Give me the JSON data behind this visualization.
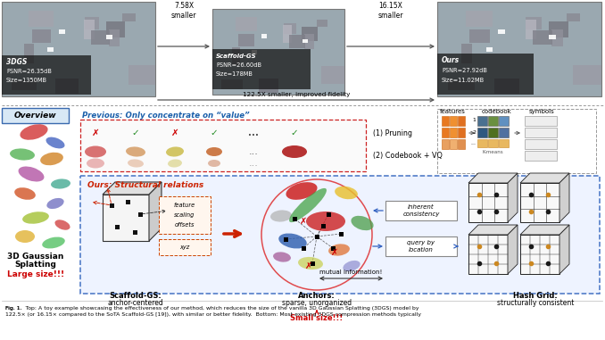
{
  "bg_color": "#ffffff",
  "img1_label": "3DGS\nPSNR=26.35dB\nSize=1350MB",
  "img2_label": "Scaffold-GS\nPSNR=26.60dB\nSize=178MB",
  "img3_label": "Ours\nPSNR=27.92dB\nSize=11.02MB",
  "arrow1": "7.58X\nsmaller",
  "arrow2": "16.15X\nsmaller",
  "bottom_arrow_text": "122.5X smaller, improved fidelity",
  "overview_label": "Overview",
  "previous_title": "Previous: Only concentrate on “value”",
  "pruning_label": "(1) Pruning",
  "codebook_label": "(2) Codebook + VQ",
  "ours_title": "Ours: Structural relations",
  "feat_label1": "feature\nscaling\noffsets",
  "feat_label2": "xyz",
  "scaffold_title": "Scaffold-GS:",
  "scaffold_sub": "anchor-centered",
  "anchor_title": "Anchors:",
  "anchor_sub": "sparse, unorganized",
  "small_size": "Small size!!!",
  "hash_title": "Hash Grid:",
  "hash_sub": "structurally consistent",
  "inherent": "inherent\nconsistency",
  "query": "query by\nlocation",
  "mutual": "mutual information!",
  "gaussian_title1": "3D Gaussian",
  "gaussian_title2": "Splatting",
  "large_size": "Large size!!!",
  "cb_features": "features",
  "cb_codebook": "codebook",
  "cb_symbols": "symbols",
  "caption": "Fig. 1.  Top: A toy example showcasing the effectiveness of our method, which reduces the size of the vanilla 3D Gaussian Splatting (3DGS) model by\n122.5× (or 16.15× compared to the SoTA Scaffold-GS [19]), with similar or better fidelity.  Bottom: Most existing 3DGS compression methods typically"
}
